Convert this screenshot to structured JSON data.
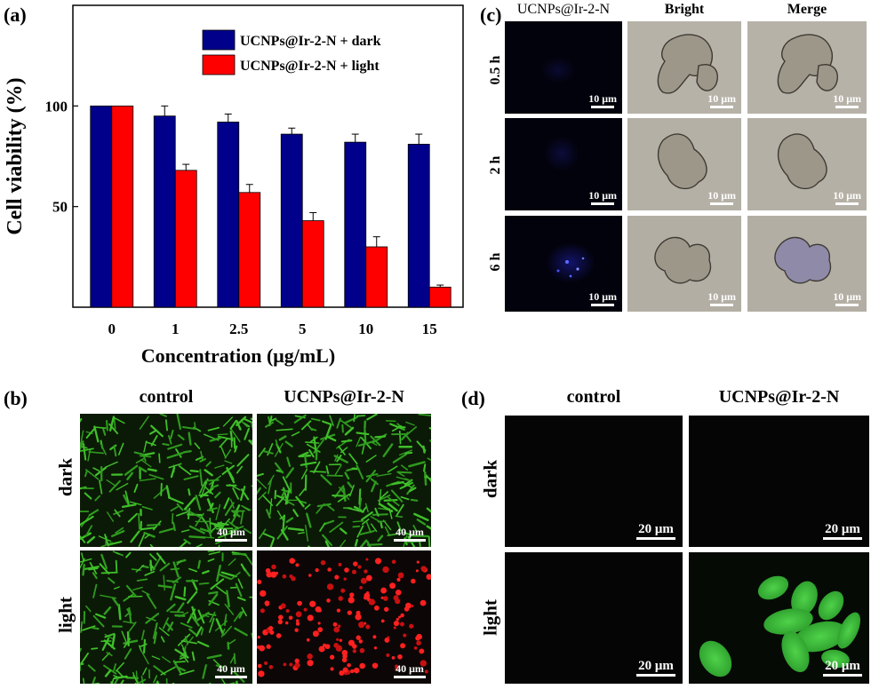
{
  "panel_a": {
    "label": "(a)",
    "chart_data": {
      "type": "bar",
      "categories": [
        "0",
        "1",
        "2.5",
        "5",
        "10",
        "15"
      ],
      "series": [
        {
          "name": "UCNPs@Ir-2-N + dark",
          "color": "#00008b",
          "values": [
            100,
            95,
            92,
            86,
            82,
            81
          ],
          "errors": [
            0,
            5,
            4,
            3,
            4,
            5
          ]
        },
        {
          "name": "UCNPs@Ir-2-N + light",
          "color": "#ff0000",
          "values": [
            100,
            68,
            57,
            43,
            30,
            10
          ],
          "errors": [
            0,
            3,
            4,
            4,
            5,
            1
          ]
        }
      ],
      "ylabel": "Cell viability (%)",
      "xlabel": "Concentration (μg/mL)",
      "yticks": [
        50,
        100
      ],
      "ylim": [
        0,
        150
      ],
      "legend_position": "top-right"
    }
  },
  "panel_b": {
    "label": "(b)",
    "col_headers": [
      "control",
      "UCNPs@Ir-2-N"
    ],
    "row_headers": [
      "dark",
      "light"
    ],
    "scale_bar": "40 μm"
  },
  "panel_c": {
    "label": "(c)",
    "col_headers": [
      "UCNPs@Ir-2-N",
      "Bright",
      "Merge"
    ],
    "row_headers": [
      "0.5 h",
      "2 h",
      "6 h"
    ],
    "scale_bar": "10 μm"
  },
  "panel_d": {
    "label": "(d)",
    "col_headers": [
      "control",
      "UCNPs@Ir-2-N"
    ],
    "row_headers": [
      "dark",
      "light"
    ],
    "scale_bar": "20 μm"
  }
}
